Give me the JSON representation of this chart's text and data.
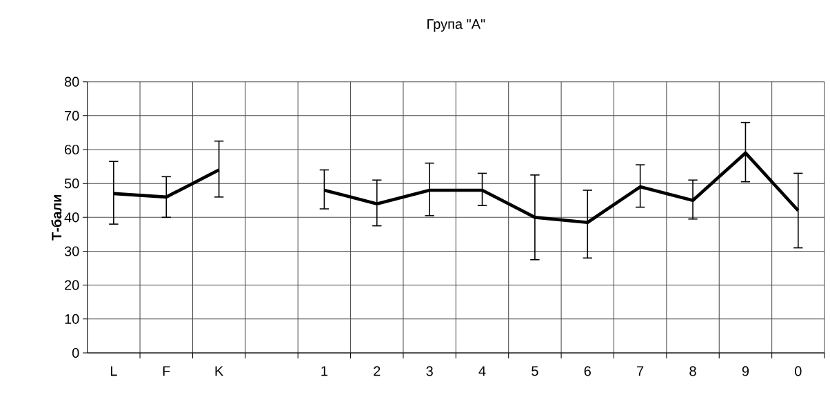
{
  "chart_data": {
    "type": "line",
    "title": "Група \"А\"",
    "ylabel": "**Т-бали**",
    "categories": [
      "L",
      "F",
      "K",
      null,
      "1",
      "2",
      "3",
      "4",
      "5",
      "6",
      "7",
      "8",
      "9",
      "0"
    ],
    "series": [
      {
        "color": "#000000",
        "values": [
          47,
          46,
          54,
          null,
          48,
          44,
          48,
          48,
          40,
          38.5,
          49,
          45,
          59,
          42
        ],
        "errors": [
          [
            38,
            56.5
          ],
          [
            40,
            52
          ],
          [
            46,
            62.5
          ],
          null,
          [
            42.5,
            54
          ],
          [
            37.5,
            51
          ],
          [
            40.5,
            56
          ],
          [
            43.5,
            53
          ],
          [
            27.5,
            52.5
          ],
          [
            28,
            48
          ],
          [
            43,
            55.5
          ],
          [
            39.5,
            51
          ],
          [
            50.5,
            68
          ],
          [
            31,
            53
          ]
        ]
      }
    ],
    "ylim": [
      0,
      80
    ],
    "yticks": [
      0,
      10,
      20,
      30,
      40,
      50,
      60,
      70,
      80
    ],
    "grid": true,
    "marker": "none",
    "line_style": "solid"
  }
}
